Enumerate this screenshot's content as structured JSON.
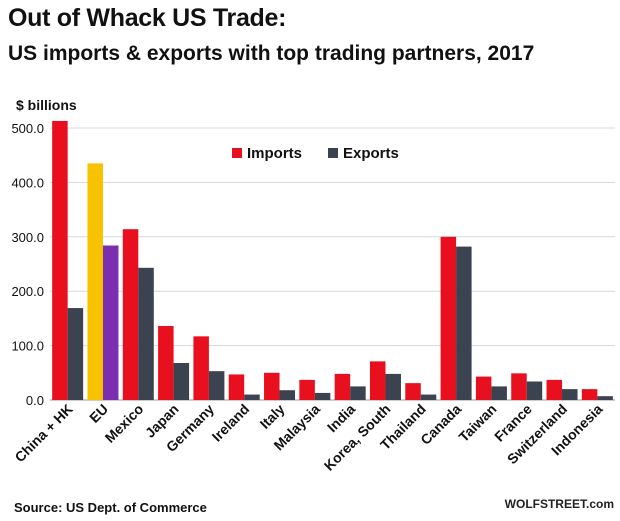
{
  "header": {
    "title": "Out of Whack US Trade:",
    "subtitle": "US imports & exports with top trading partners, 2017"
  },
  "footer": {
    "source": "Source: US Dept. of Commerce",
    "brand": "WOLFSTREET.com"
  },
  "chart_data": {
    "type": "bar",
    "ylabel": "$ billions",
    "ylim": [
      0,
      500
    ],
    "yticks": [
      "0.0",
      "100.0",
      "200.0",
      "300.0",
      "400.0",
      "500.0"
    ],
    "grid": true,
    "legend_position": "top-center",
    "categories": [
      "China + HK",
      "EU",
      "Mexico",
      "Japan",
      "Germany",
      "Ireland",
      "Italy",
      "Malaysia",
      "India",
      "Korea, South",
      "Thailand",
      "Canada",
      "Taiwan",
      "France",
      "Switzerland",
      "Indonesia"
    ],
    "series": [
      {
        "name": "Imports",
        "color": "#e8101e",
        "highlight": {
          "EU": "#f9c200"
        },
        "values": [
          513,
          435,
          314,
          136,
          117,
          47,
          50,
          37,
          48,
          71,
          31,
          300,
          43,
          49,
          37,
          20
        ]
      },
      {
        "name": "Exports",
        "color": "#3b4250",
        "highlight": {
          "EU": "#7b2fb0"
        },
        "values": [
          169,
          284,
          243,
          68,
          53,
          10,
          18,
          13,
          25,
          48,
          10,
          282,
          25,
          34,
          20,
          7
        ]
      }
    ]
  }
}
